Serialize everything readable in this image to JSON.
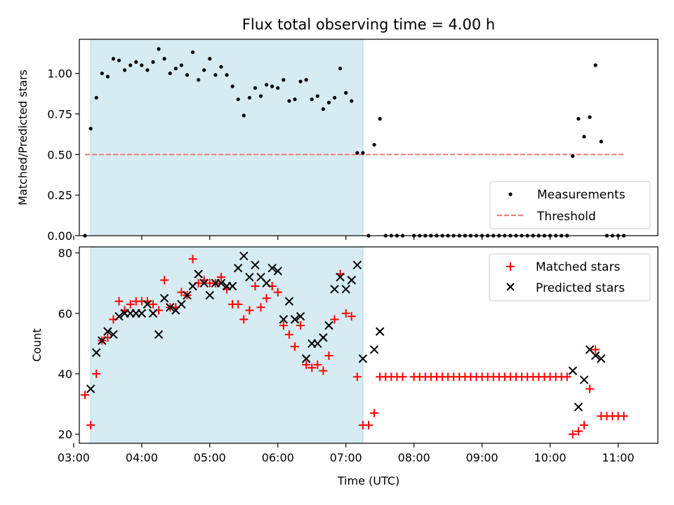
{
  "figure": {
    "title": "Flux total observing time = 4.00 h",
    "xlabel": "Time (UTC)"
  },
  "colors": {
    "span": "#add8e6",
    "threshold": "#f08080",
    "matched": "#ff0000",
    "predicted": "#000000",
    "measurement": "#000000"
  },
  "chart_data": [
    {
      "type": "scatter",
      "panel": "top",
      "ylabel": "Matched/Predicted stars",
      "xlim": [
        "03:05",
        "11:35"
      ],
      "ylim": [
        0,
        1.21
      ],
      "yticks": [
        0.0,
        0.25,
        0.5,
        0.75,
        1.0
      ],
      "xticks": [
        "03:00",
        "04:00",
        "05:00",
        "06:00",
        "07:00",
        "08:00",
        "09:00",
        "10:00",
        "11:00"
      ],
      "shaded_interval": [
        "03:15",
        "07:15"
      ],
      "threshold": {
        "label": "Threshold",
        "value": 0.5,
        "x_range": [
          "03:10",
          "11:05"
        ]
      },
      "legend_position": "lower-right",
      "series": [
        {
          "name": "Measurements",
          "marker": "dot",
          "points": [
            [
              "03:10",
              0.0
            ],
            [
              "03:15",
              0.66
            ],
            [
              "03:20",
              0.85
            ],
            [
              "03:25",
              1.0
            ],
            [
              "03:30",
              0.98
            ],
            [
              "03:35",
              1.09
            ],
            [
              "03:40",
              1.08
            ],
            [
              "03:45",
              1.02
            ],
            [
              "03:50",
              1.05
            ],
            [
              "03:55",
              1.07
            ],
            [
              "04:00",
              1.05
            ],
            [
              "04:05",
              1.02
            ],
            [
              "04:10",
              1.07
            ],
            [
              "04:15",
              1.15
            ],
            [
              "04:20",
              1.09
            ],
            [
              "04:25",
              1.0
            ],
            [
              "04:30",
              1.03
            ],
            [
              "04:35",
              1.05
            ],
            [
              "04:40",
              0.99
            ],
            [
              "04:45",
              1.13
            ],
            [
              "04:50",
              0.96
            ],
            [
              "04:55",
              1.02
            ],
            [
              "05:00",
              1.09
            ],
            [
              "05:05",
              0.99
            ],
            [
              "05:10",
              1.04
            ],
            [
              "05:15",
              0.99
            ],
            [
              "05:20",
              0.92
            ],
            [
              "05:25",
              0.84
            ],
            [
              "05:30",
              0.74
            ],
            [
              "05:35",
              0.85
            ],
            [
              "05:40",
              0.91
            ],
            [
              "05:45",
              0.86
            ],
            [
              "05:50",
              0.93
            ],
            [
              "05:55",
              0.92
            ],
            [
              "06:00",
              0.91
            ],
            [
              "06:05",
              0.96
            ],
            [
              "06:10",
              0.83
            ],
            [
              "06:15",
              0.84
            ],
            [
              "06:20",
              0.95
            ],
            [
              "06:25",
              0.96
            ],
            [
              "06:30",
              0.84
            ],
            [
              "06:35",
              0.86
            ],
            [
              "06:40",
              0.78
            ],
            [
              "06:45",
              0.82
            ],
            [
              "06:50",
              0.85
            ],
            [
              "06:55",
              1.03
            ],
            [
              "07:00",
              0.88
            ],
            [
              "07:05",
              0.83
            ],
            [
              "07:10",
              0.51
            ],
            [
              "07:15",
              0.51
            ],
            [
              "07:20",
              0.0
            ],
            [
              "07:25",
              0.56
            ],
            [
              "07:30",
              0.72
            ],
            [
              "07:35",
              0.0
            ],
            [
              "07:40",
              0.0
            ],
            [
              "07:45",
              0.0
            ],
            [
              "07:50",
              0.0
            ],
            [
              "08:00",
              0.0
            ],
            [
              "08:05",
              0.0
            ],
            [
              "08:10",
              0.0
            ],
            [
              "08:15",
              0.0
            ],
            [
              "08:20",
              0.0
            ],
            [
              "08:25",
              0.0
            ],
            [
              "08:30",
              0.0
            ],
            [
              "08:35",
              0.0
            ],
            [
              "08:40",
              0.0
            ],
            [
              "08:45",
              0.0
            ],
            [
              "08:50",
              0.0
            ],
            [
              "08:55",
              0.0
            ],
            [
              "09:00",
              0.0
            ],
            [
              "09:05",
              0.0
            ],
            [
              "09:10",
              0.0
            ],
            [
              "09:15",
              0.0
            ],
            [
              "09:20",
              0.0
            ],
            [
              "09:25",
              0.0
            ],
            [
              "09:30",
              0.0
            ],
            [
              "09:35",
              0.0
            ],
            [
              "09:40",
              0.0
            ],
            [
              "09:45",
              0.0
            ],
            [
              "09:50",
              0.0
            ],
            [
              "09:55",
              0.0
            ],
            [
              "10:00",
              0.0
            ],
            [
              "10:05",
              0.0
            ],
            [
              "10:10",
              0.0
            ],
            [
              "10:15",
              0.0
            ],
            [
              "10:20",
              0.49
            ],
            [
              "10:25",
              0.72
            ],
            [
              "10:30",
              0.61
            ],
            [
              "10:35",
              0.73
            ],
            [
              "10:40",
              1.05
            ],
            [
              "10:45",
              0.58
            ],
            [
              "10:50",
              0.0
            ],
            [
              "10:55",
              0.0
            ],
            [
              "11:00",
              0.0
            ],
            [
              "11:05",
              0.0
            ]
          ]
        }
      ]
    },
    {
      "type": "scatter",
      "panel": "bottom",
      "ylabel": "Count",
      "xlabel": "Time (UTC)",
      "xlim": [
        "03:05",
        "11:35"
      ],
      "ylim": [
        17,
        82
      ],
      "yticks": [
        20,
        40,
        60,
        80
      ],
      "xticks": [
        "03:00",
        "04:00",
        "05:00",
        "06:00",
        "07:00",
        "08:00",
        "09:00",
        "10:00",
        "11:00"
      ],
      "shaded_interval": [
        "03:15",
        "07:15"
      ],
      "legend_position": "upper-right",
      "series": [
        {
          "name": "Matched stars",
          "marker": "plus",
          "points": [
            [
              "03:10",
              33
            ],
            [
              "03:15",
              23
            ],
            [
              "03:20",
              40
            ],
            [
              "03:25",
              51
            ],
            [
              "03:30",
              52
            ],
            [
              "03:35",
              58
            ],
            [
              "03:40",
              64
            ],
            [
              "03:45",
              61
            ],
            [
              "03:50",
              63
            ],
            [
              "03:55",
              64
            ],
            [
              "04:00",
              64
            ],
            [
              "04:05",
              64
            ],
            [
              "04:10",
              63
            ],
            [
              "04:15",
              61
            ],
            [
              "04:20",
              71
            ],
            [
              "04:25",
              62
            ],
            [
              "04:30",
              62
            ],
            [
              "04:35",
              67
            ],
            [
              "04:40",
              66
            ],
            [
              "04:45",
              78
            ],
            [
              "04:50",
              70
            ],
            [
              "04:55",
              71
            ],
            [
              "05:00",
              70
            ],
            [
              "05:05",
              70
            ],
            [
              "05:10",
              72
            ],
            [
              "05:15",
              68
            ],
            [
              "05:20",
              63
            ],
            [
              "05:25",
              63
            ],
            [
              "05:30",
              58
            ],
            [
              "05:35",
              61
            ],
            [
              "05:40",
              69
            ],
            [
              "05:45",
              62
            ],
            [
              "05:50",
              65
            ],
            [
              "05:55",
              69
            ],
            [
              "06:00",
              67
            ],
            [
              "06:05",
              56
            ],
            [
              "06:10",
              53
            ],
            [
              "06:15",
              49
            ],
            [
              "06:20",
              56
            ],
            [
              "06:25",
              43
            ],
            [
              "06:30",
              42
            ],
            [
              "06:35",
              43
            ],
            [
              "06:40",
              41
            ],
            [
              "06:45",
              46
            ],
            [
              "06:50",
              58
            ],
            [
              "06:55",
              73
            ],
            [
              "07:00",
              60
            ],
            [
              "07:05",
              59
            ],
            [
              "07:10",
              39
            ],
            [
              "07:15",
              23
            ],
            [
              "07:20",
              23
            ],
            [
              "07:25",
              27
            ],
            [
              "07:30",
              39
            ],
            [
              "07:35",
              39
            ],
            [
              "07:40",
              39
            ],
            [
              "07:45",
              39
            ],
            [
              "07:50",
              39
            ],
            [
              "08:00",
              39
            ],
            [
              "08:05",
              39
            ],
            [
              "08:10",
              39
            ],
            [
              "08:15",
              39
            ],
            [
              "08:20",
              39
            ],
            [
              "08:25",
              39
            ],
            [
              "08:30",
              39
            ],
            [
              "08:35",
              39
            ],
            [
              "08:40",
              39
            ],
            [
              "08:45",
              39
            ],
            [
              "08:50",
              39
            ],
            [
              "08:55",
              39
            ],
            [
              "09:00",
              39
            ],
            [
              "09:05",
              39
            ],
            [
              "09:10",
              39
            ],
            [
              "09:15",
              39
            ],
            [
              "09:20",
              39
            ],
            [
              "09:25",
              39
            ],
            [
              "09:30",
              39
            ],
            [
              "09:35",
              39
            ],
            [
              "09:40",
              39
            ],
            [
              "09:45",
              39
            ],
            [
              "09:50",
              39
            ],
            [
              "09:55",
              39
            ],
            [
              "10:00",
              39
            ],
            [
              "10:05",
              39
            ],
            [
              "10:10",
              39
            ],
            [
              "10:15",
              39
            ],
            [
              "10:20",
              20
            ],
            [
              "10:25",
              21
            ],
            [
              "10:30",
              23
            ],
            [
              "10:35",
              35
            ],
            [
              "10:40",
              48
            ],
            [
              "10:45",
              26
            ],
            [
              "10:50",
              26
            ],
            [
              "10:55",
              26
            ],
            [
              "11:00",
              26
            ],
            [
              "11:05",
              26
            ]
          ]
        },
        {
          "name": "Predicted stars",
          "marker": "x",
          "points": [
            [
              "03:15",
              35
            ],
            [
              "03:20",
              47
            ],
            [
              "03:25",
              51
            ],
            [
              "03:30",
              54
            ],
            [
              "03:35",
              53
            ],
            [
              "03:40",
              59
            ],
            [
              "03:45",
              60
            ],
            [
              "03:50",
              60
            ],
            [
              "03:55",
              60
            ],
            [
              "04:00",
              60
            ],
            [
              "04:05",
              63
            ],
            [
              "04:10",
              60
            ],
            [
              "04:15",
              53
            ],
            [
              "04:20",
              65
            ],
            [
              "04:25",
              62
            ],
            [
              "04:30",
              61
            ],
            [
              "04:35",
              63
            ],
            [
              "04:40",
              66
            ],
            [
              "04:45",
              69
            ],
            [
              "04:50",
              73
            ],
            [
              "04:55",
              70
            ],
            [
              "05:00",
              66
            ],
            [
              "05:05",
              70
            ],
            [
              "05:10",
              70
            ],
            [
              "05:15",
              69
            ],
            [
              "05:20",
              69
            ],
            [
              "05:25",
              75
            ],
            [
              "05:30",
              79
            ],
            [
              "05:35",
              72
            ],
            [
              "05:40",
              76
            ],
            [
              "05:45",
              72
            ],
            [
              "05:50",
              70
            ],
            [
              "05:55",
              75
            ],
            [
              "06:00",
              74
            ],
            [
              "06:05",
              58
            ],
            [
              "06:10",
              64
            ],
            [
              "06:15",
              58
            ],
            [
              "06:20",
              59
            ],
            [
              "06:25",
              45
            ],
            [
              "06:30",
              50
            ],
            [
              "06:35",
              50
            ],
            [
              "06:40",
              52
            ],
            [
              "06:45",
              56
            ],
            [
              "06:50",
              68
            ],
            [
              "06:55",
              72
            ],
            [
              "07:00",
              68
            ],
            [
              "07:05",
              71
            ],
            [
              "07:10",
              76
            ],
            [
              "07:15",
              45
            ],
            [
              "07:25",
              48
            ],
            [
              "07:30",
              54
            ],
            [
              "10:20",
              41
            ],
            [
              "10:25",
              29
            ],
            [
              "10:30",
              38
            ],
            [
              "10:35",
              48
            ],
            [
              "10:40",
              46
            ],
            [
              "10:45",
              45
            ]
          ]
        }
      ]
    }
  ]
}
